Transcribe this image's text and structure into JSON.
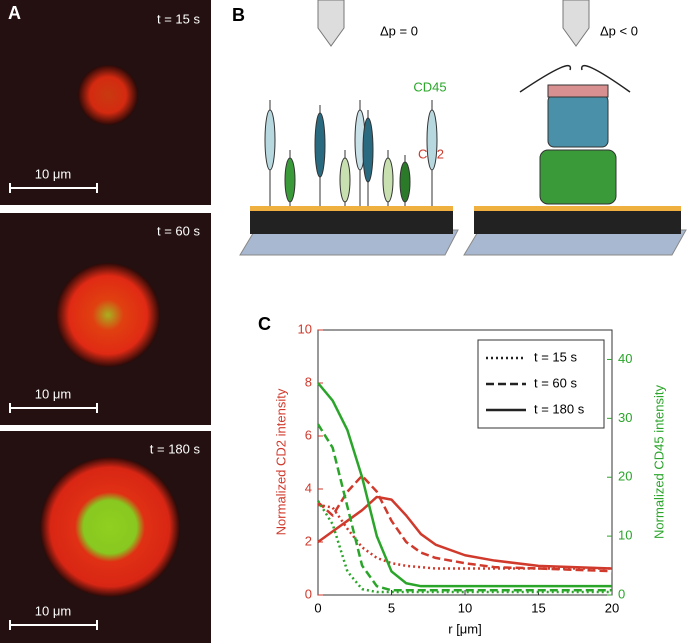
{
  "panel_a": {
    "label": "A",
    "images": [
      {
        "time": "t = 15 s",
        "scale": "10 μm"
      },
      {
        "time": "t = 60 s",
        "scale": "10 μm"
      },
      {
        "time": "t = 180 s",
        "scale": "10 μm"
      }
    ]
  },
  "panel_b": {
    "label": "B",
    "left_pressure": "Δp = 0",
    "right_pressure": "Δp < 0",
    "cd45": "CD45",
    "cd2": "CD2"
  },
  "chart_data": {
    "type": "line",
    "label": "C",
    "x": [
      0,
      1,
      2,
      3,
      4,
      5,
      6,
      7,
      8,
      10,
      12,
      15,
      20
    ],
    "xlabel": "r [μm]",
    "ylabel": "Normalized CD2 intensity",
    "y2label": "Normalized CD45 intensity",
    "xlim": [
      0,
      20
    ],
    "xticks": [
      0,
      5,
      10,
      15,
      20
    ],
    "ylim": [
      0,
      10
    ],
    "yticks": [
      0,
      2,
      4,
      6,
      8,
      10
    ],
    "y2lim": [
      0,
      45
    ],
    "y2ticks": [
      0,
      10,
      20,
      30,
      40
    ],
    "ycolor": "#d03a2c",
    "y2color": "#2aa52a",
    "legend": [
      {
        "label": "t = 15 s",
        "dash": "dotted"
      },
      {
        "label": "t = 60 s",
        "dash": "dashed"
      },
      {
        "label": "t = 180 s",
        "dash": "solid"
      }
    ],
    "series": [
      {
        "color": "#d03a2c",
        "dash": "dotted",
        "values": [
          3.4,
          3.3,
          2.5,
          1.8,
          1.4,
          1.2,
          1.1,
          1.05,
          1.0,
          1.0,
          1.0,
          1.0,
          1.0
        ]
      },
      {
        "color": "#d03a2c",
        "dash": "dashed",
        "values": [
          3.5,
          3.0,
          3.9,
          4.5,
          3.9,
          2.8,
          2.0,
          1.6,
          1.4,
          1.2,
          1.05,
          1.0,
          0.9
        ]
      },
      {
        "color": "#d03a2c",
        "dash": "solid",
        "values": [
          2.0,
          2.4,
          2.8,
          3.2,
          3.7,
          3.6,
          3.0,
          2.3,
          1.9,
          1.5,
          1.3,
          1.1,
          1.0
        ]
      },
      {
        "color": "#2aa52a",
        "dash": "dotted",
        "axis": "y2",
        "values": [
          16,
          12,
          4,
          1,
          0.5,
          0.5,
          0.5,
          0.5,
          0.5,
          0.5,
          0.5,
          0.5,
          0.5
        ]
      },
      {
        "color": "#2aa52a",
        "dash": "dashed",
        "axis": "y2",
        "values": [
          29,
          25,
          15,
          5,
          1.5,
          0.8,
          0.8,
          0.8,
          0.8,
          0.8,
          0.8,
          0.8,
          0.8
        ]
      },
      {
        "color": "#2aa52a",
        "dash": "solid",
        "axis": "y2",
        "values": [
          36,
          33,
          28,
          20,
          10,
          4,
          2,
          1.5,
          1.5,
          1.5,
          1.5,
          1.5,
          1.5
        ]
      }
    ]
  }
}
